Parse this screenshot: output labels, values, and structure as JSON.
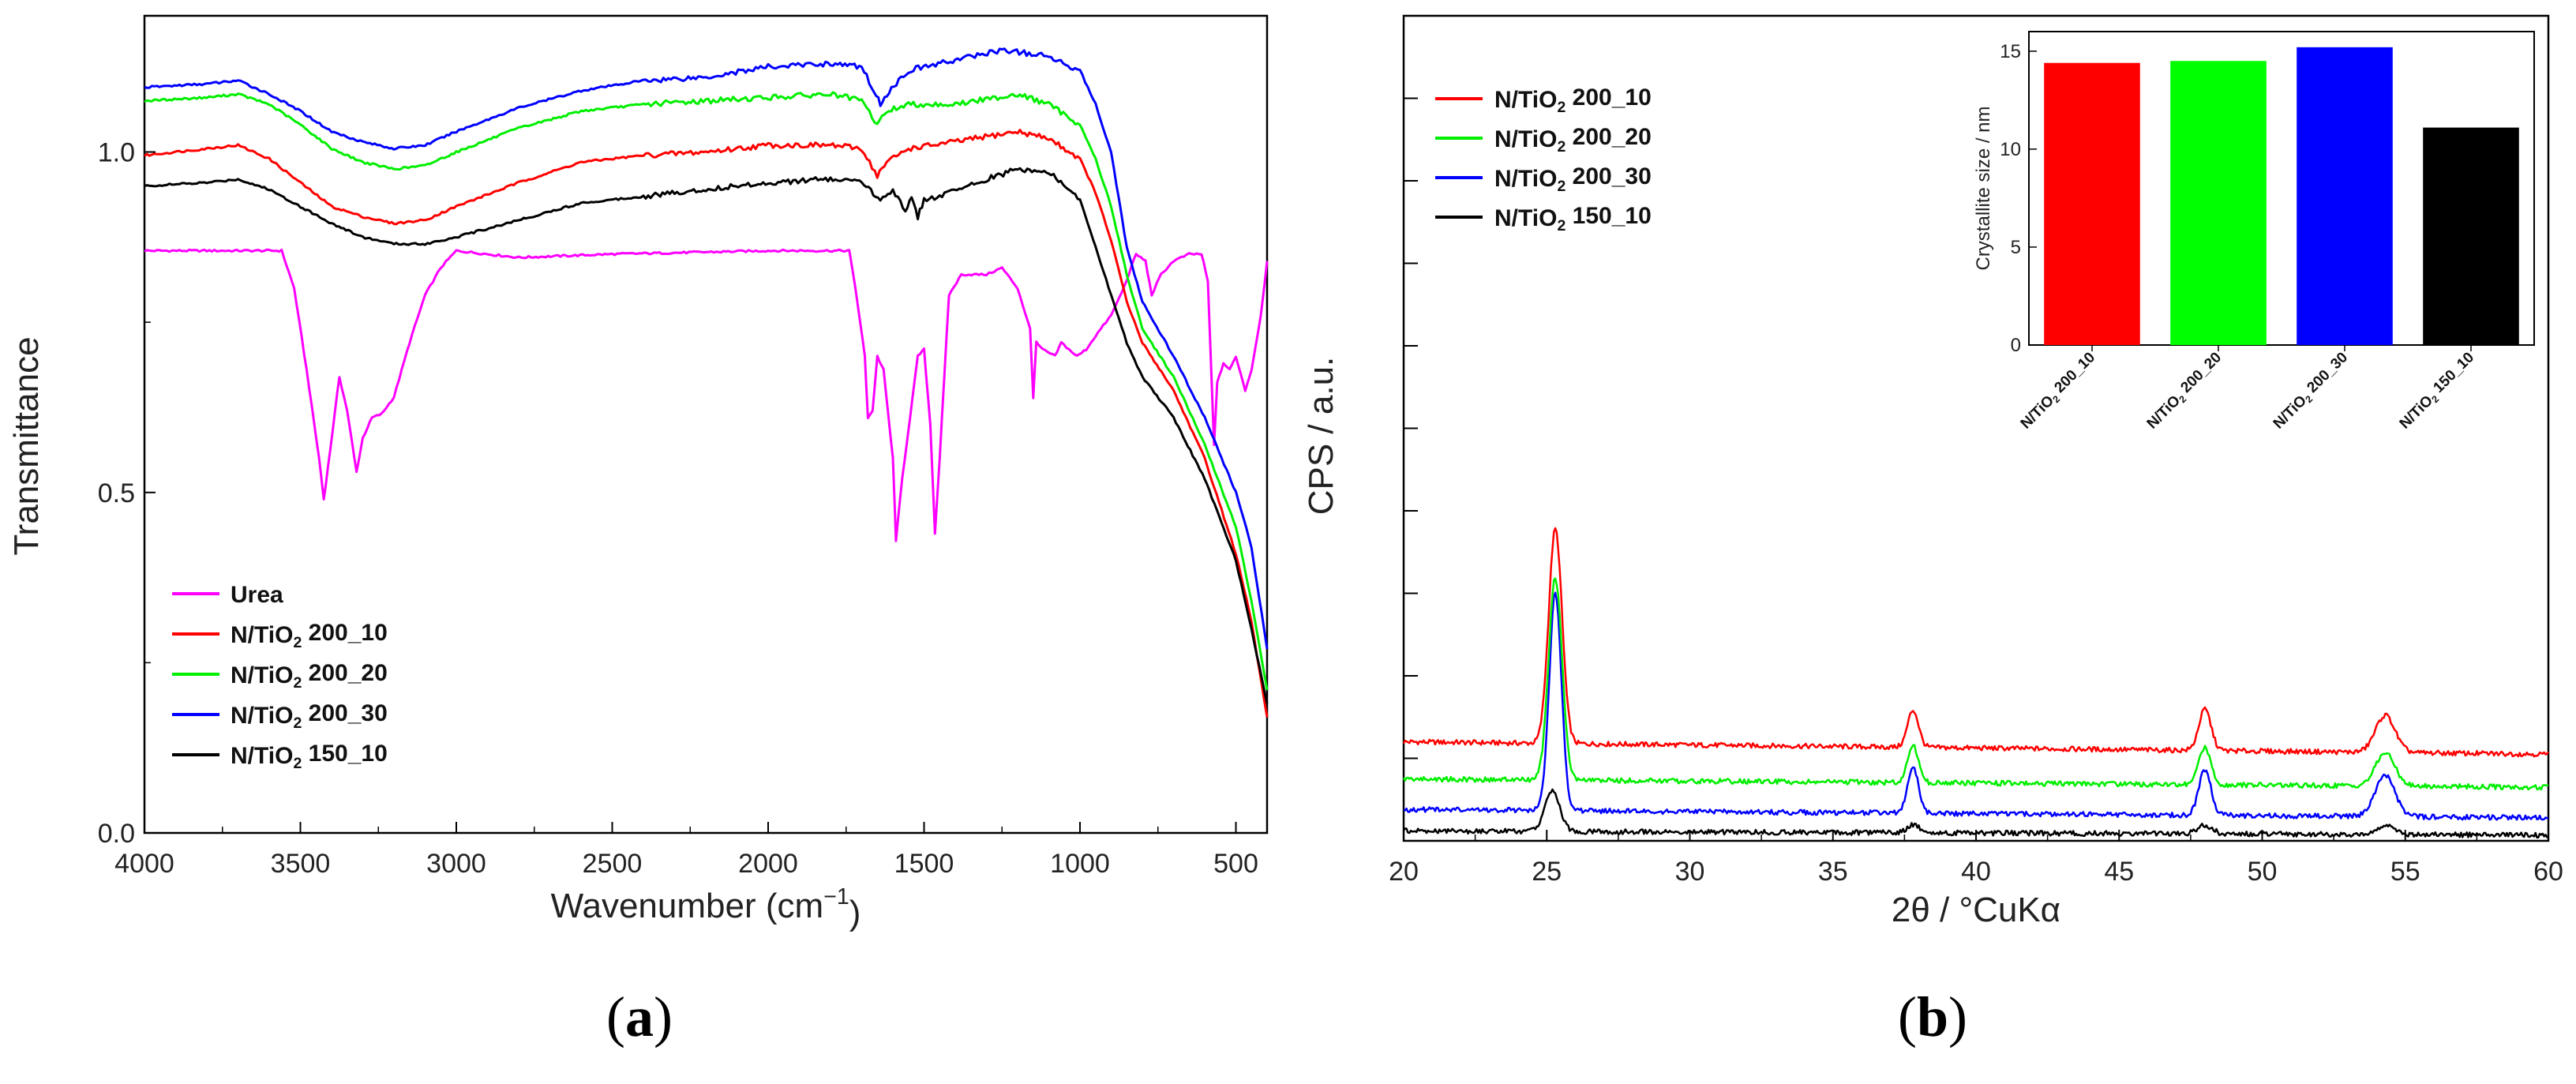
{
  "chart_data": [
    {
      "id": "a",
      "type": "line",
      "panel_label": "a",
      "xlabel": "Wavenumber (cm",
      "xlabel_sup": "−1",
      "xlabel_end": ")",
      "ylabel": "Transmittance",
      "xlim": [
        4000,
        400
      ],
      "ylim": [
        0.0,
        1.2
      ],
      "xticks": [
        4000,
        3500,
        3000,
        2500,
        2000,
        1500,
        1000,
        500
      ],
      "yticks": [
        0.0,
        0.5,
        1.0
      ],
      "ytick_labels": [
        "0.0",
        "0.5",
        "1.0"
      ],
      "legend_position": "bottom-left",
      "series": [
        {
          "name": "Urea",
          "color": "#ff00ff",
          "base": "Urea",
          "sub": "",
          "suffix": "",
          "points": [
            [
              4000,
              0.855
            ],
            [
              3560,
              0.855
            ],
            [
              3520,
              0.8
            ],
            [
              3480,
              0.68
            ],
            [
              3440,
              0.55
            ],
            [
              3425,
              0.49
            ],
            [
              3405,
              0.56
            ],
            [
              3375,
              0.67
            ],
            [
              3350,
              0.62
            ],
            [
              3320,
              0.53
            ],
            [
              3300,
              0.58
            ],
            [
              3270,
              0.61
            ],
            [
              3240,
              0.615
            ],
            [
              3200,
              0.64
            ],
            [
              3150,
              0.72
            ],
            [
              3100,
              0.79
            ],
            [
              3050,
              0.83
            ],
            [
              3000,
              0.855
            ],
            [
              2800,
              0.845
            ],
            [
              2500,
              0.85
            ],
            [
              2000,
              0.855
            ],
            [
              1740,
              0.855
            ],
            [
              1720,
              0.8
            ],
            [
              1690,
              0.7
            ],
            [
              1680,
              0.61
            ],
            [
              1665,
              0.62
            ],
            [
              1650,
              0.7
            ],
            [
              1630,
              0.68
            ],
            [
              1600,
              0.55
            ],
            [
              1590,
              0.43
            ],
            [
              1570,
              0.52
            ],
            [
              1520,
              0.7
            ],
            [
              1500,
              0.71
            ],
            [
              1480,
              0.6
            ],
            [
              1465,
              0.44
            ],
            [
              1450,
              0.55
            ],
            [
              1420,
              0.79
            ],
            [
              1380,
              0.82
            ],
            [
              1300,
              0.82
            ],
            [
              1250,
              0.83
            ],
            [
              1200,
              0.8
            ],
            [
              1160,
              0.74
            ],
            [
              1150,
              0.64
            ],
            [
              1140,
              0.72
            ],
            [
              1120,
              0.71
            ],
            [
              1080,
              0.7
            ],
            [
              1060,
              0.72
            ],
            [
              1010,
              0.7
            ],
            [
              980,
              0.71
            ],
            [
              950,
              0.73
            ],
            [
              900,
              0.76
            ],
            [
              860,
              0.8
            ],
            [
              820,
              0.85
            ],
            [
              790,
              0.84
            ],
            [
              770,
              0.79
            ],
            [
              740,
              0.82
            ],
            [
              700,
              0.84
            ],
            [
              650,
              0.85
            ],
            [
              610,
              0.85
            ],
            [
              590,
              0.81
            ],
            [
              570,
              0.57
            ],
            [
              560,
              0.66
            ],
            [
              540,
              0.69
            ],
            [
              520,
              0.68
            ],
            [
              500,
              0.7
            ],
            [
              470,
              0.65
            ],
            [
              450,
              0.68
            ],
            [
              420,
              0.76
            ],
            [
              400,
              0.84
            ]
          ]
        },
        {
          "name": "N/TiO2 200_10",
          "color": "#ff0000",
          "base": "N/TiO",
          "sub": "2",
          "suffix": " 200_10",
          "points": [
            [
              4000,
              0.995
            ],
            [
              3800,
              1.005
            ],
            [
              3700,
              1.01
            ],
            [
              3600,
              0.99
            ],
            [
              3500,
              0.955
            ],
            [
              3400,
              0.92
            ],
            [
              3300,
              0.905
            ],
            [
              3200,
              0.895
            ],
            [
              3100,
              0.9
            ],
            [
              3000,
              0.92
            ],
            [
              2800,
              0.955
            ],
            [
              2600,
              0.985
            ],
            [
              2400,
              0.995
            ],
            [
              2200,
              1.0
            ],
            [
              2000,
              1.01
            ],
            [
              1800,
              1.01
            ],
            [
              1700,
              1.005
            ],
            [
              1650,
              0.965
            ],
            [
              1620,
              0.985
            ],
            [
              1550,
              1.005
            ],
            [
              1400,
              1.015
            ],
            [
              1200,
              1.03
            ],
            [
              1100,
              1.02
            ],
            [
              1000,
              0.99
            ],
            [
              950,
              0.94
            ],
            [
              900,
              0.87
            ],
            [
              850,
              0.78
            ],
            [
              800,
              0.72
            ],
            [
              700,
              0.65
            ],
            [
              600,
              0.55
            ],
            [
              500,
              0.41
            ],
            [
              450,
              0.31
            ],
            [
              400,
              0.17
            ]
          ]
        },
        {
          "name": "N/TiO2 200_20",
          "color": "#00ee00",
          "base": "N/TiO",
          "sub": "2",
          "suffix": " 200_20",
          "points": [
            [
              4000,
              1.075
            ],
            [
              3800,
              1.08
            ],
            [
              3700,
              1.085
            ],
            [
              3600,
              1.07
            ],
            [
              3500,
              1.04
            ],
            [
              3400,
              1.005
            ],
            [
              3300,
              0.985
            ],
            [
              3200,
              0.975
            ],
            [
              3100,
              0.98
            ],
            [
              3000,
              1.0
            ],
            [
              2800,
              1.035
            ],
            [
              2600,
              1.06
            ],
            [
              2400,
              1.07
            ],
            [
              2200,
              1.075
            ],
            [
              2000,
              1.08
            ],
            [
              1800,
              1.085
            ],
            [
              1700,
              1.075
            ],
            [
              1650,
              1.04
            ],
            [
              1620,
              1.06
            ],
            [
              1550,
              1.07
            ],
            [
              1400,
              1.07
            ],
            [
              1200,
              1.085
            ],
            [
              1100,
              1.07
            ],
            [
              1000,
              1.04
            ],
            [
              950,
              0.99
            ],
            [
              900,
              0.92
            ],
            [
              850,
              0.82
            ],
            [
              800,
              0.74
            ],
            [
              700,
              0.67
            ],
            [
              600,
              0.57
            ],
            [
              500,
              0.45
            ],
            [
              450,
              0.34
            ],
            [
              400,
              0.21
            ]
          ]
        },
        {
          "name": "N/TiO2 200_30",
          "color": "#0000ff",
          "base": "N/TiO",
          "sub": "2",
          "suffix": " 200_30",
          "points": [
            [
              4000,
              1.095
            ],
            [
              3800,
              1.1
            ],
            [
              3700,
              1.105
            ],
            [
              3600,
              1.085
            ],
            [
              3500,
              1.06
            ],
            [
              3400,
              1.03
            ],
            [
              3300,
              1.015
            ],
            [
              3200,
              1.005
            ],
            [
              3100,
              1.01
            ],
            [
              3000,
              1.03
            ],
            [
              2800,
              1.065
            ],
            [
              2600,
              1.09
            ],
            [
              2400,
              1.105
            ],
            [
              2200,
              1.11
            ],
            [
              2000,
              1.125
            ],
            [
              1800,
              1.13
            ],
            [
              1700,
              1.125
            ],
            [
              1660,
              1.09
            ],
            [
              1640,
              1.07
            ],
            [
              1620,
              1.085
            ],
            [
              1550,
              1.12
            ],
            [
              1400,
              1.135
            ],
            [
              1250,
              1.15
            ],
            [
              1100,
              1.14
            ],
            [
              1000,
              1.12
            ],
            [
              950,
              1.07
            ],
            [
              900,
              1.0
            ],
            [
              850,
              0.86
            ],
            [
              800,
              0.78
            ],
            [
              700,
              0.7
            ],
            [
              600,
              0.61
            ],
            [
              500,
              0.5
            ],
            [
              450,
              0.42
            ],
            [
              400,
              0.27
            ]
          ]
        },
        {
          "name": "N/TiO2 150_10",
          "color": "#000000",
          "base": "N/TiO",
          "sub": "2",
          "suffix": " 150_10",
          "points": [
            [
              4000,
              0.95
            ],
            [
              3800,
              0.955
            ],
            [
              3700,
              0.96
            ],
            [
              3600,
              0.945
            ],
            [
              3500,
              0.92
            ],
            [
              3400,
              0.895
            ],
            [
              3300,
              0.875
            ],
            [
              3200,
              0.865
            ],
            [
              3100,
              0.865
            ],
            [
              3000,
              0.875
            ],
            [
              2800,
              0.9
            ],
            [
              2600,
              0.925
            ],
            [
              2400,
              0.935
            ],
            [
              2300,
              0.94
            ],
            [
              2200,
              0.945
            ],
            [
              2000,
              0.955
            ],
            [
              1800,
              0.96
            ],
            [
              1700,
              0.955
            ],
            [
              1640,
              0.93
            ],
            [
              1600,
              0.945
            ],
            [
              1560,
              0.915
            ],
            [
              1540,
              0.93
            ],
            [
              1520,
              0.905
            ],
            [
              1500,
              0.93
            ],
            [
              1450,
              0.935
            ],
            [
              1300,
              0.96
            ],
            [
              1200,
              0.975
            ],
            [
              1100,
              0.97
            ],
            [
              1000,
              0.93
            ],
            [
              950,
              0.86
            ],
            [
              900,
              0.79
            ],
            [
              850,
              0.72
            ],
            [
              800,
              0.67
            ],
            [
              700,
              0.61
            ],
            [
              600,
              0.52
            ],
            [
              500,
              0.4
            ],
            [
              450,
              0.3
            ],
            [
              400,
              0.19
            ]
          ]
        }
      ]
    },
    {
      "id": "b",
      "type": "line",
      "panel_label": "b",
      "xlabel": "2θ / °CuKα",
      "ylabel": "CPS / a.u.",
      "xlim": [
        20,
        60
      ],
      "ylim": [
        0,
        10
      ],
      "xticks": [
        20,
        25,
        30,
        35,
        40,
        45,
        50,
        55,
        60
      ],
      "yticks": [
        0,
        1,
        2,
        3,
        4,
        5,
        6,
        7,
        8,
        9,
        10
      ],
      "y_tick_labels_shown": false,
      "legend_position": "top-left",
      "series": [
        {
          "name": "N/TiO2 200_10",
          "color": "#ff0000",
          "base": "N/TiO",
          "sub": "2",
          "suffix": " 200_10",
          "baseline": 1.2,
          "baseline_end": 1.05,
          "peaks": [
            [
              25.3,
              2.6,
              0.55
            ],
            [
              37.8,
              0.45,
              0.45
            ],
            [
              48.0,
              0.5,
              0.5
            ],
            [
              54.3,
              0.45,
              0.8
            ]
          ]
        },
        {
          "name": "N/TiO2 200_20",
          "color": "#00ee00",
          "base": "N/TiO",
          "sub": "2",
          "suffix": " 200_20",
          "baseline": 0.75,
          "baseline_end": 0.65,
          "peaks": [
            [
              25.3,
              2.45,
              0.55
            ],
            [
              37.8,
              0.45,
              0.45
            ],
            [
              48.0,
              0.45,
              0.5
            ],
            [
              54.3,
              0.4,
              0.8
            ]
          ]
        },
        {
          "name": "N/TiO2 200_30",
          "color": "#0000ff",
          "base": "N/TiO",
          "sub": "2",
          "suffix": " 200_30",
          "baseline": 0.38,
          "baseline_end": 0.28,
          "peaks": [
            [
              25.3,
              2.65,
              0.5
            ],
            [
              37.8,
              0.55,
              0.45
            ],
            [
              48.0,
              0.55,
              0.5
            ],
            [
              54.3,
              0.5,
              0.8
            ]
          ]
        },
        {
          "name": "N/TiO2 150_10",
          "color": "#000000",
          "base": "N/TiO",
          "sub": "2",
          "suffix": " 150_10",
          "baseline": 0.12,
          "baseline_end": 0.07,
          "peaks": [
            [
              25.2,
              0.5,
              0.6
            ],
            [
              37.8,
              0.1,
              0.5
            ],
            [
              48.0,
              0.1,
              0.6
            ],
            [
              54.3,
              0.1,
              0.8
            ]
          ]
        }
      ],
      "inset": {
        "type": "bar",
        "ylabel": "Crystallite size / nm",
        "ylim": [
          0,
          16
        ],
        "yticks": [
          0,
          5,
          10,
          15
        ],
        "bars": [
          {
            "label": "N/TiO2 200_10",
            "base": "N/TiO",
            "sub": "2",
            "suffix": " 200_10",
            "value": 14.4,
            "color": "#ff0000"
          },
          {
            "label": "N/TiO2 200_20",
            "base": "N/TiO",
            "sub": "2",
            "suffix": " 200_20",
            "value": 14.5,
            "color": "#00ff00"
          },
          {
            "label": "N/TiO2 200_30",
            "base": "N/TiO",
            "sub": "2",
            "suffix": " 200_30",
            "value": 15.2,
            "color": "#0000ff"
          },
          {
            "label": "N/TiO2 150_10",
            "base": "N/TiO",
            "sub": "2",
            "suffix": " 150_10",
            "value": 11.1,
            "color": "#000000"
          }
        ]
      }
    }
  ]
}
